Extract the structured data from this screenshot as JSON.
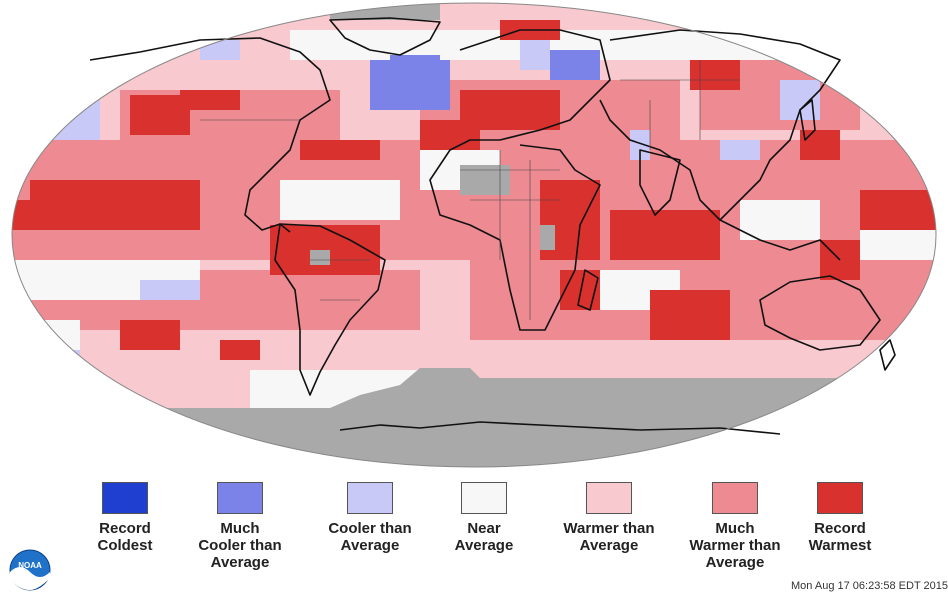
{
  "colors": {
    "record_coldest": "#1f3fd0",
    "much_cooler": "#7b83e8",
    "cooler": "#c9c9f7",
    "near": "#f7f7f7",
    "warmer": "#f8c9ce",
    "much_warmer": "#ee8b92",
    "record_warmest": "#d9312e",
    "no_data": "#a9a9a9"
  },
  "legend": [
    {
      "key": "record_coldest",
      "label": "Record\nColdest"
    },
    {
      "key": "much_cooler",
      "label": "Much\nCooler than\nAverage"
    },
    {
      "key": "cooler",
      "label": "Cooler than\nAverage"
    },
    {
      "key": "near",
      "label": "Near\nAverage"
    },
    {
      "key": "warmer",
      "label": "Warmer than\nAverage"
    },
    {
      "key": "much_warmer",
      "label": "Much\nWarmer than\nAverage"
    },
    {
      "key": "record_warmest",
      "label": "Record\nWarmest"
    }
  ],
  "logo": {
    "text": "NOAA"
  },
  "timestamp": "Mon Aug 17 06:23:58 EDT 2015"
}
